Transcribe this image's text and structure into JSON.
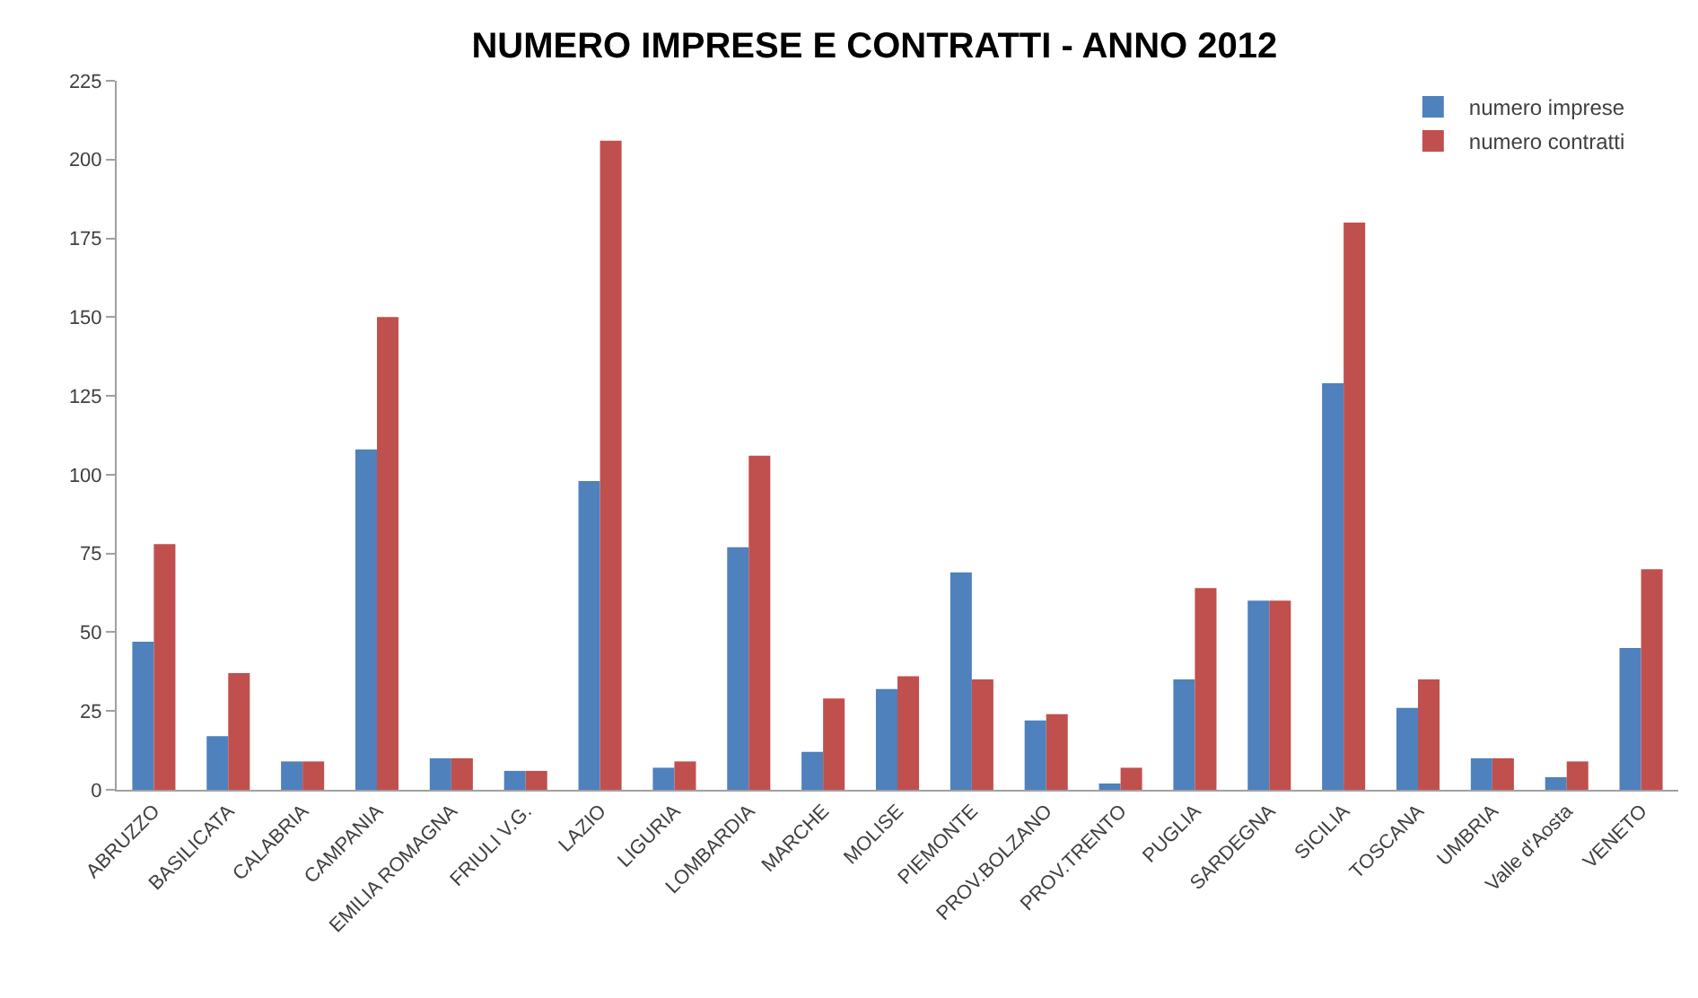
{
  "chart_data": {
    "type": "bar",
    "title": "NUMERO IMPRESE E CONTRATTI - ANNO 2012",
    "categories": [
      "ABRUZZO",
      "BASILICATA",
      "CALABRIA",
      "CAMPANIA",
      "EMILIA ROMAGNA",
      "FRIULI V.G.",
      "LAZIO",
      "LIGURIA",
      "LOMBARDIA",
      "MARCHE",
      "MOLISE",
      "PIEMONTE",
      "PROV.BOLZANO",
      "PROV.TRENTO",
      "PUGLIA",
      "SARDEGNA",
      "SICILIA",
      "TOSCANA",
      "UMBRIA",
      "Valle d'Aosta",
      "VENETO"
    ],
    "series": [
      {
        "name": "numero imprese",
        "color": "#4f81bd",
        "values": [
          47,
          17,
          9,
          108,
          10,
          6,
          98,
          7,
          77,
          12,
          32,
          69,
          22,
          2,
          35,
          60,
          129,
          26,
          10,
          4,
          45
        ]
      },
      {
        "name": "numero contratti",
        "color": "#c0504d",
        "values": [
          78,
          37,
          9,
          150,
          10,
          6,
          206,
          9,
          106,
          29,
          36,
          35,
          24,
          7,
          64,
          60,
          180,
          35,
          10,
          9,
          70
        ]
      }
    ],
    "ylim": [
      0,
      225
    ],
    "yticks": [
      0,
      25,
      50,
      75,
      100,
      125,
      150,
      175,
      200,
      225
    ],
    "grid": false,
    "legend": "top right"
  }
}
